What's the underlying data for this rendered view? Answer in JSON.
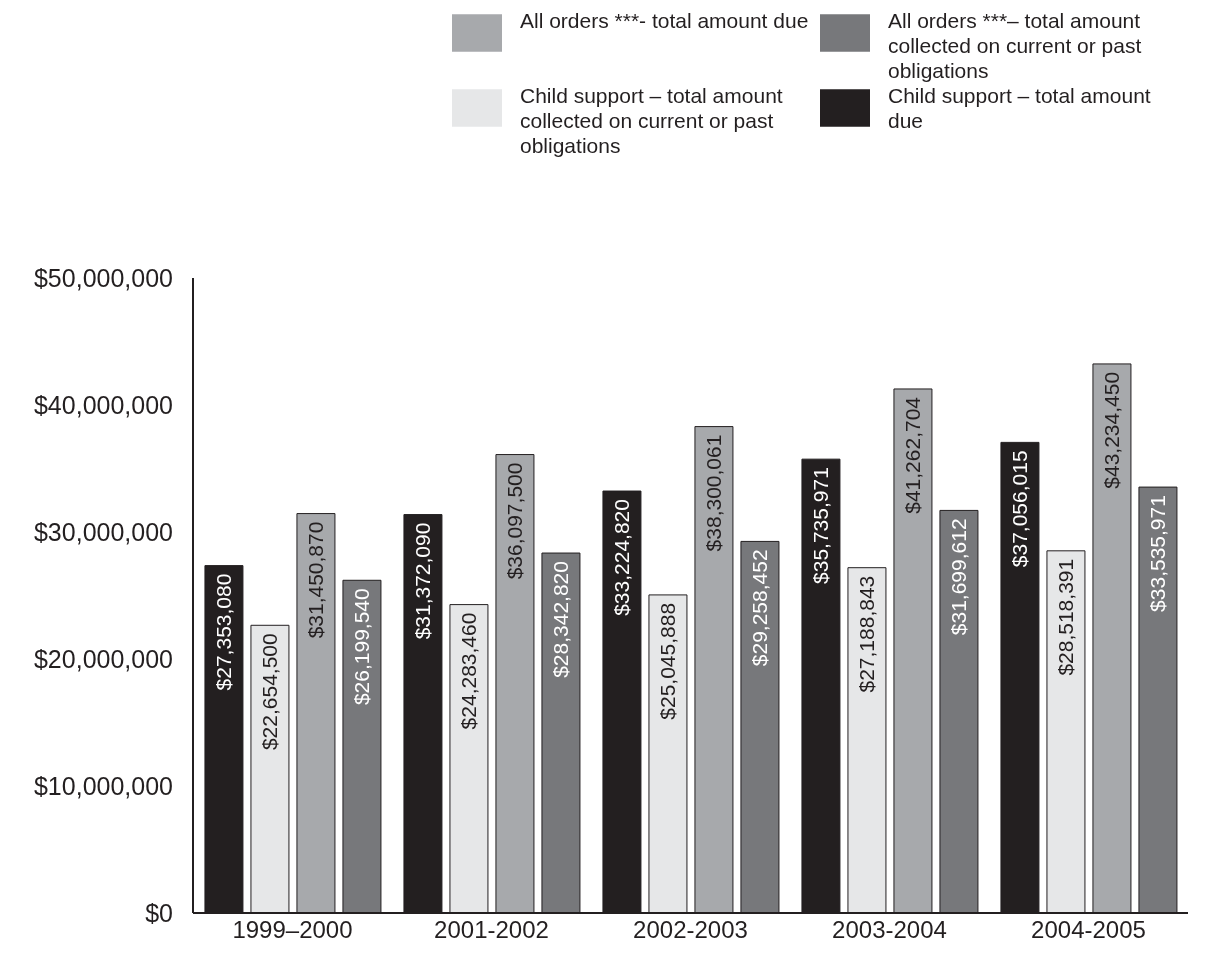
{
  "chart_data": {
    "type": "bar",
    "categories": [
      "1999–2000",
      "2001-2002",
      "2002-2003",
      "2003-2004",
      "2004-2005"
    ],
    "series": [
      {
        "name": "Child support – total amount due",
        "color": "#231f20",
        "values": [
          27353080,
          31372090,
          33224820,
          35735971,
          37056015
        ],
        "value_labels": [
          "$27,353,080",
          "$31,372,090",
          "$33,224,820",
          "$35,735,971",
          "$37,056,015"
        ]
      },
      {
        "name": "Child support – total amount collected on current or past obligations",
        "color": "#e6e7e8",
        "values": [
          22654500,
          24283460,
          25045888,
          27188843,
          28518391
        ],
        "value_labels": [
          "$22,654,500",
          "$24,283,460",
          "$25,045,888",
          "$27,188,843",
          "$28,518,391"
        ]
      },
      {
        "name": "All orders ***- total amount due",
        "color": "#a7a9ac",
        "values": [
          31450870,
          36097500,
          38300061,
          41262704,
          43234450
        ],
        "value_labels": [
          "$31,450,870",
          "$36,097,500",
          "$38,300,061",
          "$41,262,704",
          "$43,234,450"
        ]
      },
      {
        "name": "All orders ***– total amount collected on current or past obligations",
        "color": "#77787b",
        "values": [
          26199540,
          28342820,
          29258452,
          31699612,
          33535971
        ],
        "value_labels": [
          "$26,199,540",
          "$28,342,820",
          "$29,258,452",
          "$31,699,612",
          "$33,535,971"
        ]
      }
    ],
    "ylim": [
      0,
      50000000
    ],
    "yticks": [
      {
        "value": 0,
        "label": "$0"
      },
      {
        "value": 10000000,
        "label": "$10,000,000"
      },
      {
        "value": 20000000,
        "label": "$20,000,000"
      },
      {
        "value": 30000000,
        "label": "$30,000,000"
      },
      {
        "value": 40000000,
        "label": "$40,000,000"
      },
      {
        "value": 50000000,
        "label": "$50,000,000"
      }
    ],
    "grid": false,
    "legend": "top right"
  }
}
